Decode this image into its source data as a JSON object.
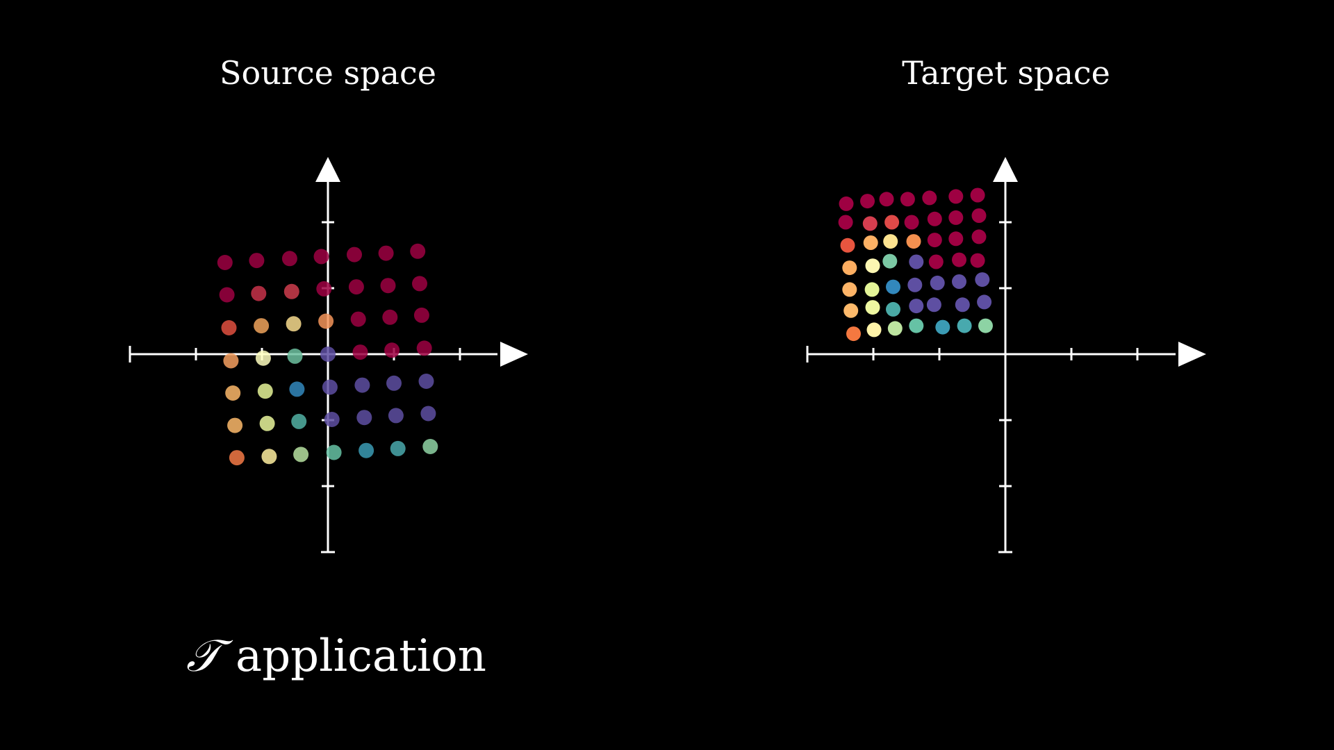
{
  "panels": {
    "source": {
      "title": "Source space"
    },
    "target": {
      "title": "Target space"
    }
  },
  "caption": {
    "symbol": "𝒯",
    "text": "application"
  },
  "colors": {
    "background": "#000000",
    "axes": "#ffffff",
    "palette": [
      "#9e0142",
      "#d53e4f",
      "#f46d43",
      "#fdae61",
      "#fee08b",
      "#e6f598",
      "#abdda4",
      "#66c2a5",
      "#3288bd",
      "#5e4fa2"
    ]
  },
  "chart_data": [
    {
      "type": "scatter",
      "name_ref": "source",
      "xlim": [
        -3,
        3
      ],
      "ylim": [
        -3,
        3
      ],
      "x_ticks": [
        -3,
        -2,
        -1,
        0,
        1,
        2,
        3
      ],
      "y_ticks": [
        -3,
        -2,
        -1,
        0,
        1,
        2,
        3
      ],
      "grid": false,
      "rows": [
        {
          "pts": [
            [
              -1.56,
              1.39
            ],
            [
              -1.08,
              1.42
            ],
            [
              -0.58,
              1.45
            ],
            [
              -0.1,
              1.48
            ],
            [
              0.4,
              1.51
            ],
            [
              0.88,
              1.53
            ],
            [
              1.36,
              1.56
            ]
          ],
          "colors": [
            "#9e0142",
            "#9e0142",
            "#9e0142",
            "#9e0142",
            "#9e0142",
            "#9e0142",
            "#9e0142"
          ]
        },
        {
          "pts": [
            [
              -1.53,
              0.9
            ],
            [
              -1.05,
              0.92
            ],
            [
              -0.55,
              0.95
            ],
            [
              -0.06,
              0.99
            ],
            [
              0.43,
              1.02
            ],
            [
              0.91,
              1.04
            ],
            [
              1.39,
              1.07
            ]
          ],
          "colors": [
            "#9e0142",
            "#c8324a",
            "#cf3d4d",
            "#9e0142",
            "#9e0142",
            "#9e0142",
            "#9e0142"
          ]
        },
        {
          "pts": [
            [
              -1.5,
              0.4
            ],
            [
              -1.01,
              0.43
            ],
            [
              -0.52,
              0.46
            ],
            [
              -0.03,
              0.5
            ],
            [
              0.46,
              0.53
            ],
            [
              0.94,
              0.56
            ],
            [
              1.42,
              0.59
            ]
          ],
          "colors": [
            "#e0503f",
            "#f0a35c",
            "#f8dc8e",
            "#f4955a",
            "#9e0142",
            "#9e0142",
            "#9e0142"
          ]
        },
        {
          "pts": [
            [
              -1.47,
              -0.1
            ],
            [
              -0.98,
              -0.06
            ],
            [
              -0.5,
              -0.03
            ],
            [
              0.0,
              0.0
            ],
            [
              0.49,
              0.03
            ],
            [
              0.97,
              0.06
            ],
            [
              1.46,
              0.09
            ]
          ],
          "colors": [
            "#f6a060",
            "#ffffbf",
            "#6dc1a0",
            "#5e4fa2",
            "#9e0142",
            "#9e0142",
            "#9e0142"
          ]
        },
        {
          "pts": [
            [
              -1.44,
              -0.59
            ],
            [
              -0.95,
              -0.56
            ],
            [
              -0.47,
              -0.53
            ],
            [
              0.03,
              -0.5
            ],
            [
              0.52,
              -0.47
            ],
            [
              1.0,
              -0.44
            ],
            [
              1.49,
              -0.41
            ]
          ],
          "colors": [
            "#fdb86a",
            "#e6f598",
            "#3288bd",
            "#5e4fa2",
            "#5e4fa2",
            "#5e4fa2",
            "#5e4fa2"
          ]
        },
        {
          "pts": [
            [
              -1.41,
              -1.08
            ],
            [
              -0.92,
              -1.05
            ],
            [
              -0.44,
              -1.02
            ],
            [
              0.06,
              -0.99
            ],
            [
              0.55,
              -0.96
            ],
            [
              1.03,
              -0.93
            ],
            [
              1.52,
              -0.9
            ]
          ],
          "colors": [
            "#fdba6b",
            "#eaf79c",
            "#52b2a5",
            "#5e4fa2",
            "#5e4fa2",
            "#5e4fa2",
            "#5e4fa2"
          ]
        },
        {
          "pts": [
            [
              -1.38,
              -1.57
            ],
            [
              -0.89,
              -1.55
            ],
            [
              -0.41,
              -1.52
            ],
            [
              0.09,
              -1.49
            ],
            [
              0.58,
              -1.46
            ],
            [
              1.06,
              -1.43
            ],
            [
              1.55,
              -1.4
            ]
          ],
          "colors": [
            "#f47a46",
            "#fff0a0",
            "#b7e2a1",
            "#66c2a5",
            "#3b9bb4",
            "#4aa9ad",
            "#8fd3a4"
          ]
        }
      ]
    },
    {
      "type": "scatter",
      "name_ref": "target",
      "xlim": [
        -3,
        3
      ],
      "ylim": [
        -3,
        3
      ],
      "x_ticks": [
        -3,
        -2,
        -1,
        0,
        1,
        2,
        3
      ],
      "y_ticks": [
        -3,
        -2,
        -1,
        0,
        1,
        2,
        3
      ],
      "grid": false,
      "rows": [
        {
          "pts": [
            [
              -2.41,
              2.28
            ],
            [
              -2.09,
              2.32
            ],
            [
              -1.8,
              2.35
            ],
            [
              -1.48,
              2.35
            ],
            [
              -1.15,
              2.37
            ],
            [
              -0.75,
              2.39
            ],
            [
              -0.42,
              2.41
            ]
          ],
          "colors": [
            "#9e0142",
            "#9e0142",
            "#9e0142",
            "#9e0142",
            "#9e0142",
            "#9e0142",
            "#9e0142"
          ]
        },
        {
          "pts": [
            [
              -2.42,
              2.0
            ],
            [
              -2.05,
              1.98
            ],
            [
              -1.72,
              2.0
            ],
            [
              -1.42,
              2.0
            ],
            [
              -1.07,
              2.05
            ],
            [
              -0.75,
              2.07
            ],
            [
              -0.4,
              2.1
            ]
          ],
          "colors": [
            "#9e0142",
            "#d53e4f",
            "#e04a48",
            "#9e0142",
            "#9e0142",
            "#9e0142",
            "#9e0142"
          ]
        },
        {
          "pts": [
            [
              -2.39,
              1.65
            ],
            [
              -2.04,
              1.69
            ],
            [
              -1.74,
              1.71
            ],
            [
              -1.39,
              1.71
            ],
            [
              -1.07,
              1.73
            ],
            [
              -0.75,
              1.75
            ],
            [
              -0.4,
              1.78
            ]
          ],
          "colors": [
            "#e8553f",
            "#fdb164",
            "#fee38f",
            "#f4904f",
            "#9e0142",
            "#9e0142",
            "#9e0142"
          ]
        },
        {
          "pts": [
            [
              -2.36,
              1.31
            ],
            [
              -2.01,
              1.34
            ],
            [
              -1.75,
              1.41
            ],
            [
              -1.35,
              1.4
            ],
            [
              -1.05,
              1.4
            ],
            [
              -0.7,
              1.43
            ],
            [
              -0.42,
              1.42
            ]
          ],
          "colors": [
            "#fdae61",
            "#fcf6b2",
            "#7bc8a4",
            "#5e4fa2",
            "#9e0142",
            "#9e0142",
            "#9e0142"
          ]
        },
        {
          "pts": [
            [
              -2.36,
              0.98
            ],
            [
              -2.02,
              0.98
            ],
            [
              -1.7,
              1.02
            ],
            [
              -1.37,
              1.05
            ],
            [
              -1.03,
              1.08
            ],
            [
              -0.7,
              1.1
            ],
            [
              -0.35,
              1.13
            ]
          ],
          "colors": [
            "#fdb467",
            "#e3f497",
            "#3288bd",
            "#5e4fa2",
            "#5e4fa2",
            "#5e4fa2",
            "#5e4fa2"
          ]
        },
        {
          "pts": [
            [
              -2.34,
              0.66
            ],
            [
              -2.01,
              0.71
            ],
            [
              -1.7,
              0.68
            ],
            [
              -1.35,
              0.73
            ],
            [
              -1.08,
              0.75
            ],
            [
              -0.65,
              0.75
            ],
            [
              -0.32,
              0.79
            ]
          ],
          "colors": [
            "#fdba6b",
            "#eef7a0",
            "#4aaaa6",
            "#5e4fa2",
            "#5e4fa2",
            "#5e4fa2",
            "#5e4fa2"
          ]
        },
        {
          "pts": [
            [
              -2.3,
              0.31
            ],
            [
              -1.99,
              0.37
            ],
            [
              -1.67,
              0.39
            ],
            [
              -1.35,
              0.43
            ],
            [
              -0.95,
              0.41
            ],
            [
              -0.62,
              0.43
            ],
            [
              -0.3,
              0.43
            ]
          ],
          "colors": [
            "#f47840",
            "#fff3a8",
            "#bde4a0",
            "#66c2a5",
            "#3b9bb4",
            "#48a9ae",
            "#8dd3a4"
          ]
        }
      ]
    }
  ]
}
